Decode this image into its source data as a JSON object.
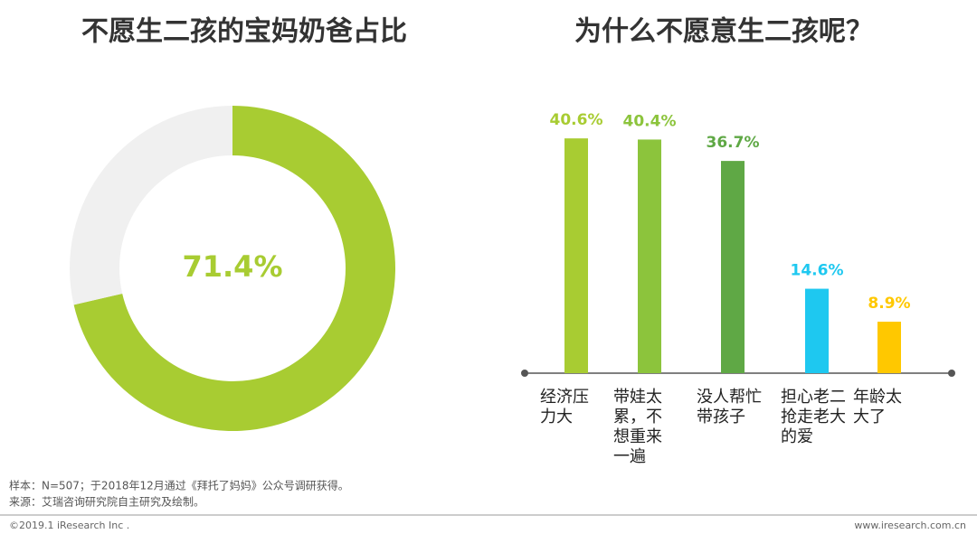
{
  "chart_data": [
    {
      "type": "pie",
      "title": "不愿生二孩的宝妈奶爸占比",
      "values": [
        71.4,
        28.6
      ],
      "value_labels": [
        "71.4%",
        null
      ],
      "colors": [
        "#a8cc32",
        "#f0f0f0"
      ],
      "donut": true
    },
    {
      "type": "bar",
      "title": "为什么不愿意生二孩呢？",
      "categories": [
        "经济压\n力大",
        "带娃太\n累，不\n想重来\n一遍",
        "没人帮忙\n带孩子",
        "担心老二\n抢走老大\n的爱",
        "年龄太\n大了"
      ],
      "values": [
        40.6,
        40.4,
        36.7,
        14.6,
        8.9
      ],
      "value_labels": [
        "40.6%",
        "40.4%",
        "36.7%",
        "14.6%",
        "8.9%"
      ],
      "colors": [
        "#a8cc32",
        "#8cc43c",
        "#5fa845",
        "#1ec8f0",
        "#ffc800"
      ],
      "ylim": [
        0,
        45
      ]
    }
  ],
  "footer": {
    "notes": [
      "样本：N=507；于2018年12月通过《拜托了妈妈》公众号调研获得。",
      "来源：艾瑞咨询研究院自主研究及绘制。"
    ],
    "copyright": "©2019.1 iResearch Inc .",
    "url": "www.iresearch.com.cn"
  }
}
